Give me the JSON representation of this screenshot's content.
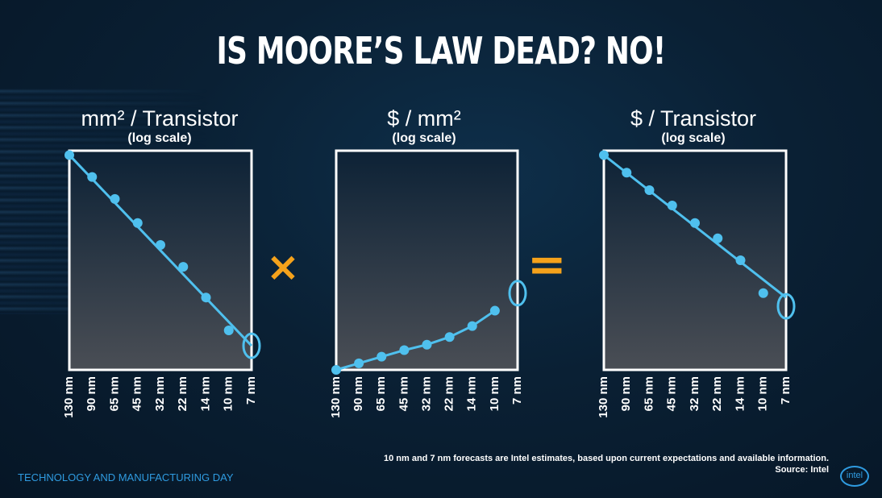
{
  "title": "IS MOORE’S LAW DEAD?  NO!",
  "operators": {
    "multiply": "×",
    "equals": "="
  },
  "footnote": {
    "line1": "10 nm and 7 nm forecasts are Intel estimates, based upon current expectations and available information.",
    "line2": "Source: Intel"
  },
  "footer": "TECHNOLOGY AND MANUFACTURING DAY",
  "logo": "intel",
  "colors": {
    "line": "#4fc0ee",
    "operator": "#f5a21b",
    "footer": "#2f9be0"
  },
  "chart_data": [
    {
      "type": "line",
      "title": "mm² / Transistor",
      "subtitle": "(log scale)",
      "categories": [
        "130 nm",
        "90 nm",
        "65 nm",
        "45 nm",
        "32 nm",
        "22 nm",
        "14 nm",
        "10 nm",
        "7 nm"
      ],
      "yscale": "log (relative)",
      "ylim": [
        0,
        1
      ],
      "points": [
        0.98,
        0.88,
        0.78,
        0.67,
        0.57,
        0.47,
        0.33,
        0.18,
        null
      ],
      "trend_line": [
        [
          0,
          0.98
        ],
        [
          8,
          0.11
        ]
      ],
      "highlight": {
        "category": "7 nm",
        "value": 0.11
      }
    },
    {
      "type": "line",
      "title": "$ / mm²",
      "subtitle": "(log scale)",
      "categories": [
        "130 nm",
        "90 nm",
        "65 nm",
        "45 nm",
        "32 nm",
        "22 nm",
        "14 nm",
        "10 nm",
        "7 nm"
      ],
      "yscale": "log (relative)",
      "ylim": [
        0,
        1
      ],
      "points": [
        0.0,
        0.03,
        0.06,
        0.09,
        0.115,
        0.15,
        0.2,
        0.27,
        null
      ],
      "trend_line": [
        [
          0,
          0.0
        ],
        [
          1,
          0.03
        ],
        [
          2,
          0.06
        ],
        [
          3,
          0.09
        ],
        [
          4,
          0.115
        ],
        [
          5,
          0.15
        ],
        [
          6,
          0.2
        ],
        [
          7,
          0.27
        ]
      ],
      "highlight": {
        "category": "7 nm",
        "value": 0.35
      }
    },
    {
      "type": "line",
      "title": "$ / Transistor",
      "subtitle": "(log scale)",
      "categories": [
        "130 nm",
        "90 nm",
        "65 nm",
        "45 nm",
        "32 nm",
        "22 nm",
        "14 nm",
        "10 nm",
        "7 nm"
      ],
      "yscale": "log (relative)",
      "ylim": [
        0,
        1
      ],
      "points": [
        0.98,
        0.9,
        0.82,
        0.75,
        0.67,
        0.6,
        0.5,
        0.35,
        null
      ],
      "trend_line": [
        [
          0,
          0.98
        ],
        [
          8,
          0.33
        ]
      ],
      "highlight": {
        "category": "7 nm",
        "value": 0.29
      }
    }
  ]
}
